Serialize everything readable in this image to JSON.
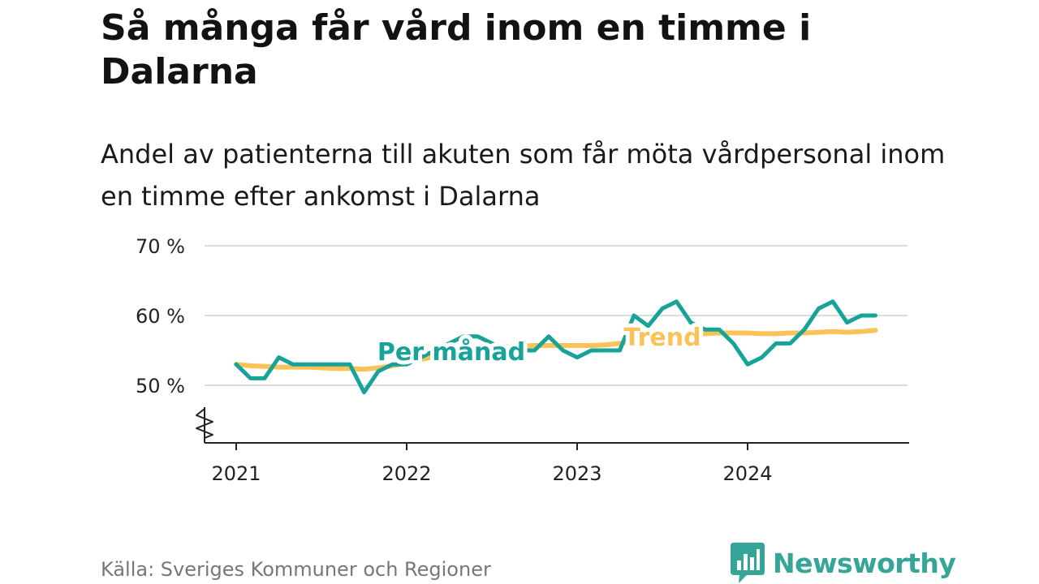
{
  "header": {
    "title": "Så många får vård inom en timme i Dalarna",
    "subtitle": "Andel av patienterna till akuten som får möta vårdpersonal inom en timme efter ankomst i Dalarna"
  },
  "footer": {
    "source": "Källa: Sveriges Kommuner och Regioner",
    "brand": "Newsworthy"
  },
  "chart_data": {
    "type": "line",
    "y_ticks": [
      {
        "value": 50,
        "label": "50 %"
      },
      {
        "value": 60,
        "label": "60 %"
      },
      {
        "value": 70,
        "label": "70 %"
      }
    ],
    "x_ticks": [
      {
        "value": 2021,
        "label": "2021"
      },
      {
        "value": 2022,
        "label": "2022"
      },
      {
        "value": 2023,
        "label": "2023"
      },
      {
        "value": 2024,
        "label": "2024"
      }
    ],
    "ylim": [
      43,
      70
    ],
    "xlim": [
      2020.8,
      2024.95
    ],
    "axis_break": true,
    "grid": true,
    "series": [
      {
        "name": "Per månad",
        "color": "#17a398",
        "months": [
          "2021-01",
          "2021-02",
          "2021-03",
          "2021-04",
          "2021-05",
          "2021-06",
          "2021-07",
          "2021-08",
          "2021-09",
          "2021-10",
          "2021-11",
          "2021-12",
          "2022-01",
          "2022-02",
          "2022-03",
          "2022-04",
          "2022-05",
          "2022-06",
          "2022-07",
          "2022-08",
          "2022-09",
          "2022-10",
          "2022-11",
          "2022-12",
          "2023-01",
          "2023-02",
          "2023-03",
          "2023-04",
          "2023-05",
          "2023-06",
          "2023-07",
          "2023-08",
          "2023-09",
          "2023-10",
          "2023-11",
          "2023-12",
          "2024-01",
          "2024-02",
          "2024-03",
          "2024-04",
          "2024-05",
          "2024-06",
          "2024-07",
          "2024-08",
          "2024-09",
          "2024-10"
        ],
        "values": [
          53,
          51,
          51,
          54,
          53,
          53,
          53,
          53,
          53,
          49,
          52,
          53,
          53,
          54,
          55,
          56,
          57,
          57,
          56,
          55,
          55,
          55,
          57,
          55,
          54,
          55,
          55,
          55,
          60,
          58.5,
          61,
          62,
          59,
          58,
          58,
          56,
          53,
          54,
          56,
          56,
          58,
          61,
          62,
          59,
          60,
          60
        ]
      },
      {
        "name": "Trend",
        "color": "#fac35a",
        "months": [
          "2021-01",
          "2021-02",
          "2021-03",
          "2021-04",
          "2021-05",
          "2021-06",
          "2021-07",
          "2021-08",
          "2021-09",
          "2021-10",
          "2021-11",
          "2021-12",
          "2022-01",
          "2022-02",
          "2022-03",
          "2022-04",
          "2022-05",
          "2022-06",
          "2022-07",
          "2022-08",
          "2022-09",
          "2022-10",
          "2022-11",
          "2022-12",
          "2023-01",
          "2023-02",
          "2023-03",
          "2023-04",
          "2023-05",
          "2023-06",
          "2023-07",
          "2023-08",
          "2023-09",
          "2023-10",
          "2023-11",
          "2023-12",
          "2024-01",
          "2024-02",
          "2024-03",
          "2024-04",
          "2024-05",
          "2024-06",
          "2024-07",
          "2024-08",
          "2024-09",
          "2024-10"
        ],
        "values": [
          53,
          52.8,
          52.7,
          52.6,
          52.6,
          52.6,
          52.5,
          52.4,
          52.4,
          52.3,
          52.5,
          52.8,
          53.2,
          53.7,
          54.1,
          54.5,
          54.9,
          55.2,
          55.4,
          55.5,
          55.6,
          55.7,
          55.7,
          55.7,
          55.7,
          55.7,
          55.8,
          56.0,
          56.3,
          56.6,
          56.9,
          57.1,
          57.3,
          57.4,
          57.5,
          57.5,
          57.5,
          57.4,
          57.4,
          57.5,
          57.5,
          57.6,
          57.7,
          57.6,
          57.7,
          57.9
        ]
      }
    ]
  }
}
